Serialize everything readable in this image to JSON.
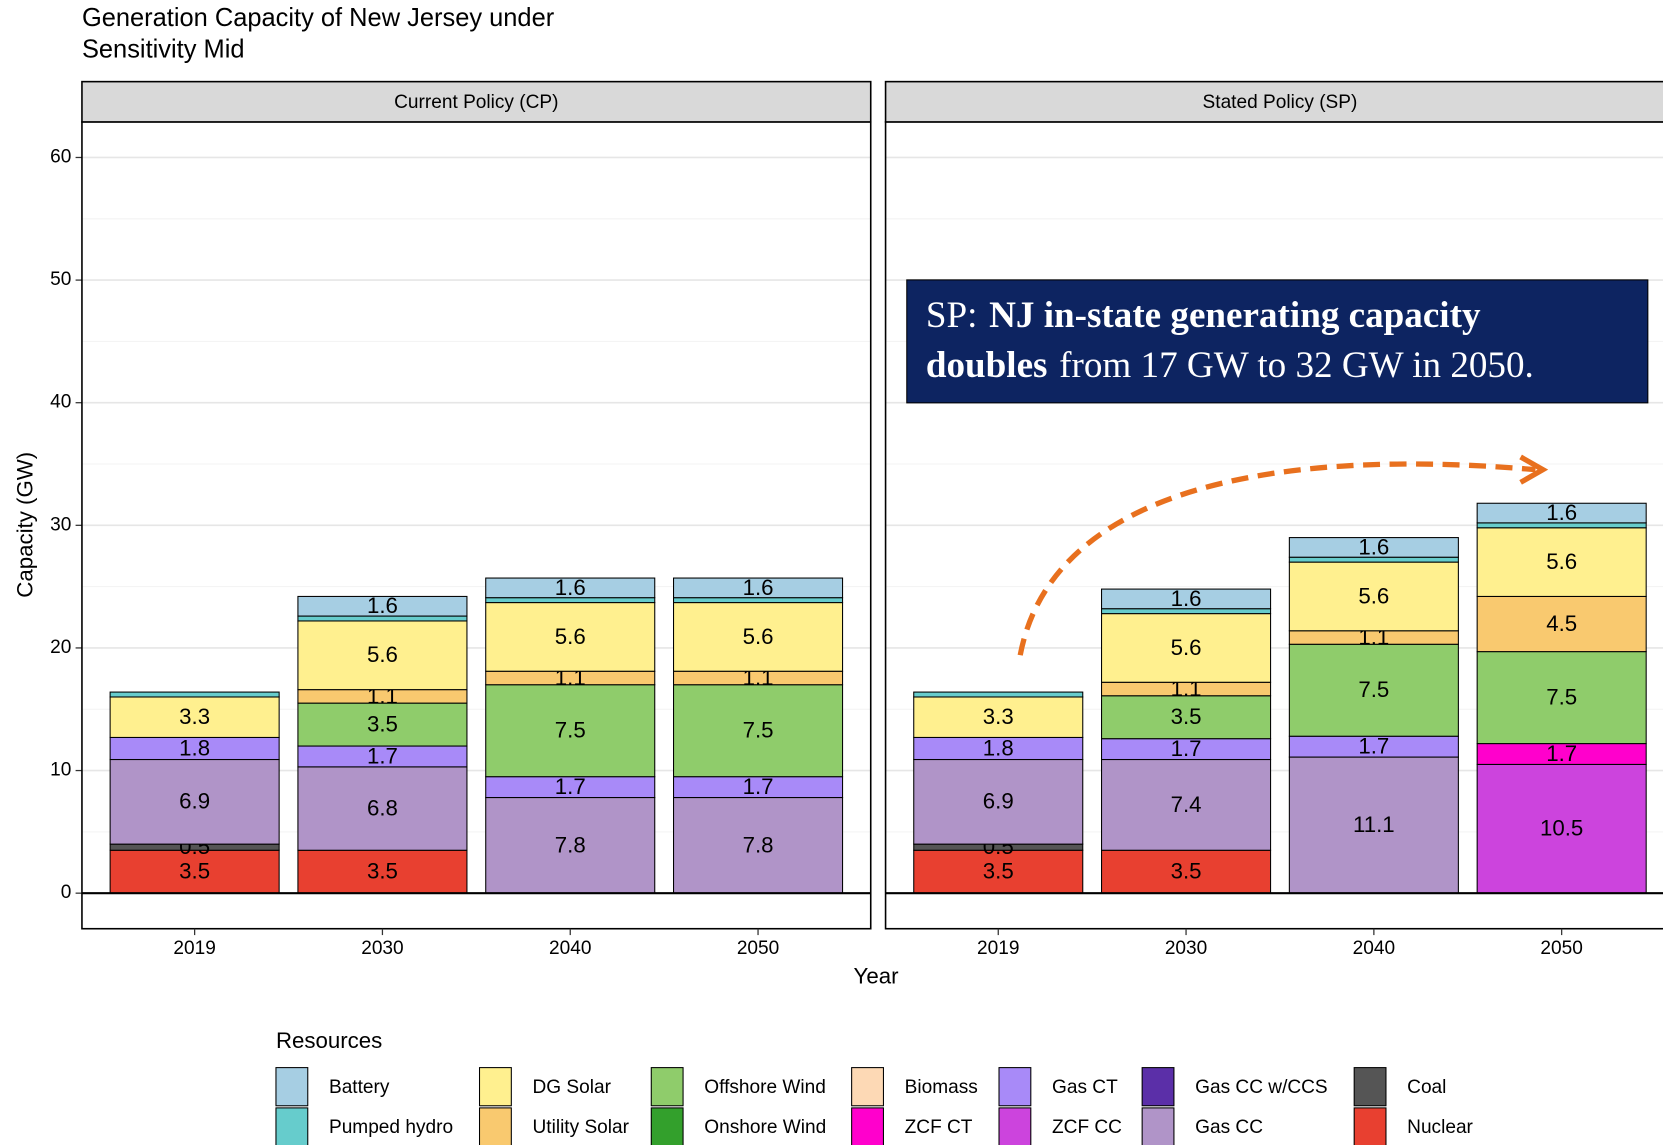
{
  "chart_data": {
    "type": "bar",
    "stacked": true,
    "title": [
      "Generation Capacity of New Jersey under",
      "Sensitivity Mid"
    ],
    "x_label": "Year",
    "y_label": "Capacity (GW)",
    "legend_title": "Resources",
    "categories": [
      "2019",
      "2030",
      "2040",
      "2050"
    ],
    "facets": [
      {
        "title": "Current Policy (CP)"
      },
      {
        "title": "Stated Policy (SP)"
      }
    ],
    "ylim": [
      -2.9,
      62.9
    ],
    "yticks": [
      0,
      10,
      20,
      30,
      40,
      50,
      60
    ],
    "grid": true,
    "annotation": {
      "lines": [
        [
          {
            "text": "SP:",
            "bold": false
          },
          {
            "text": "NJ in-state generating capacity",
            "bold": true
          }
        ],
        [
          {
            "text": "doubles",
            "bold": true
          },
          {
            "text": "from 17 GW to 32 GW in 2050.",
            "bold": false
          }
        ]
      ],
      "color": "#0d2461",
      "arrow_color": "#e8701e"
    },
    "series": [
      {
        "name": "Battery",
        "color": "#a6cee3",
        "values": [
          [
            null,
            1.6,
            1.6,
            1.6
          ],
          [
            null,
            1.6,
            1.6,
            1.6
          ]
        ]
      },
      {
        "name": "Pumped hydro",
        "color": "#66cccc",
        "show_labels": false,
        "values": [
          [
            0.4,
            0.4,
            0.4,
            0.4
          ],
          [
            0.4,
            0.4,
            0.4,
            0.4
          ]
        ]
      },
      {
        "name": "DG Solar",
        "color": "#fff08f",
        "values": [
          [
            3.3,
            5.6,
            5.6,
            5.6
          ],
          [
            3.3,
            5.6,
            5.6,
            5.6
          ]
        ]
      },
      {
        "name": "Utility Solar",
        "color": "#f9c96f",
        "values": [
          [
            null,
            1.1,
            1.1,
            1.1
          ],
          [
            null,
            1.1,
            1.1,
            4.5
          ]
        ]
      },
      {
        "name": "Offshore Wind",
        "color": "#8fcc6b",
        "values": [
          [
            null,
            3.5,
            7.5,
            7.5
          ],
          [
            null,
            3.5,
            7.5,
            7.5
          ]
        ]
      },
      {
        "name": "Onshore Wind",
        "color": "#33a02c",
        "values": [
          [
            null,
            null,
            null,
            null
          ],
          [
            null,
            null,
            null,
            null
          ]
        ]
      },
      {
        "name": "Biomass",
        "color": "#fdd9b5",
        "values": [
          [
            null,
            null,
            null,
            null
          ],
          [
            null,
            null,
            null,
            null
          ]
        ]
      },
      {
        "name": "ZCF CT",
        "color": "#ff00cc",
        "values": [
          [
            null,
            null,
            null,
            null
          ],
          [
            null,
            null,
            null,
            1.7
          ]
        ]
      },
      {
        "name": "Gas CT",
        "color": "#a88af8",
        "values": [
          [
            1.8,
            1.7,
            1.7,
            1.7
          ],
          [
            1.8,
            1.7,
            1.7,
            null
          ]
        ]
      },
      {
        "name": "ZCF CC",
        "color": "#cc44dd",
        "values": [
          [
            null,
            null,
            null,
            null
          ],
          [
            null,
            null,
            null,
            10.5
          ]
        ]
      },
      {
        "name": "Gas CC w/CCS",
        "color": "#5b2fa8",
        "values": [
          [
            null,
            null,
            null,
            null
          ],
          [
            null,
            null,
            null,
            null
          ]
        ]
      },
      {
        "name": "Gas CC",
        "color": "#b094c8",
        "values": [
          [
            6.9,
            6.8,
            7.8,
            7.8
          ],
          [
            6.9,
            7.4,
            11.1,
            null
          ]
        ]
      },
      {
        "name": "Coal",
        "color": "#555555",
        "values": [
          [
            0.5,
            null,
            null,
            null
          ],
          [
            0.5,
            null,
            null,
            null
          ]
        ]
      },
      {
        "name": "Nuclear",
        "color": "#e84030",
        "values": [
          [
            3.5,
            3.5,
            null,
            null
          ],
          [
            3.5,
            3.5,
            null,
            null
          ]
        ]
      }
    ]
  }
}
